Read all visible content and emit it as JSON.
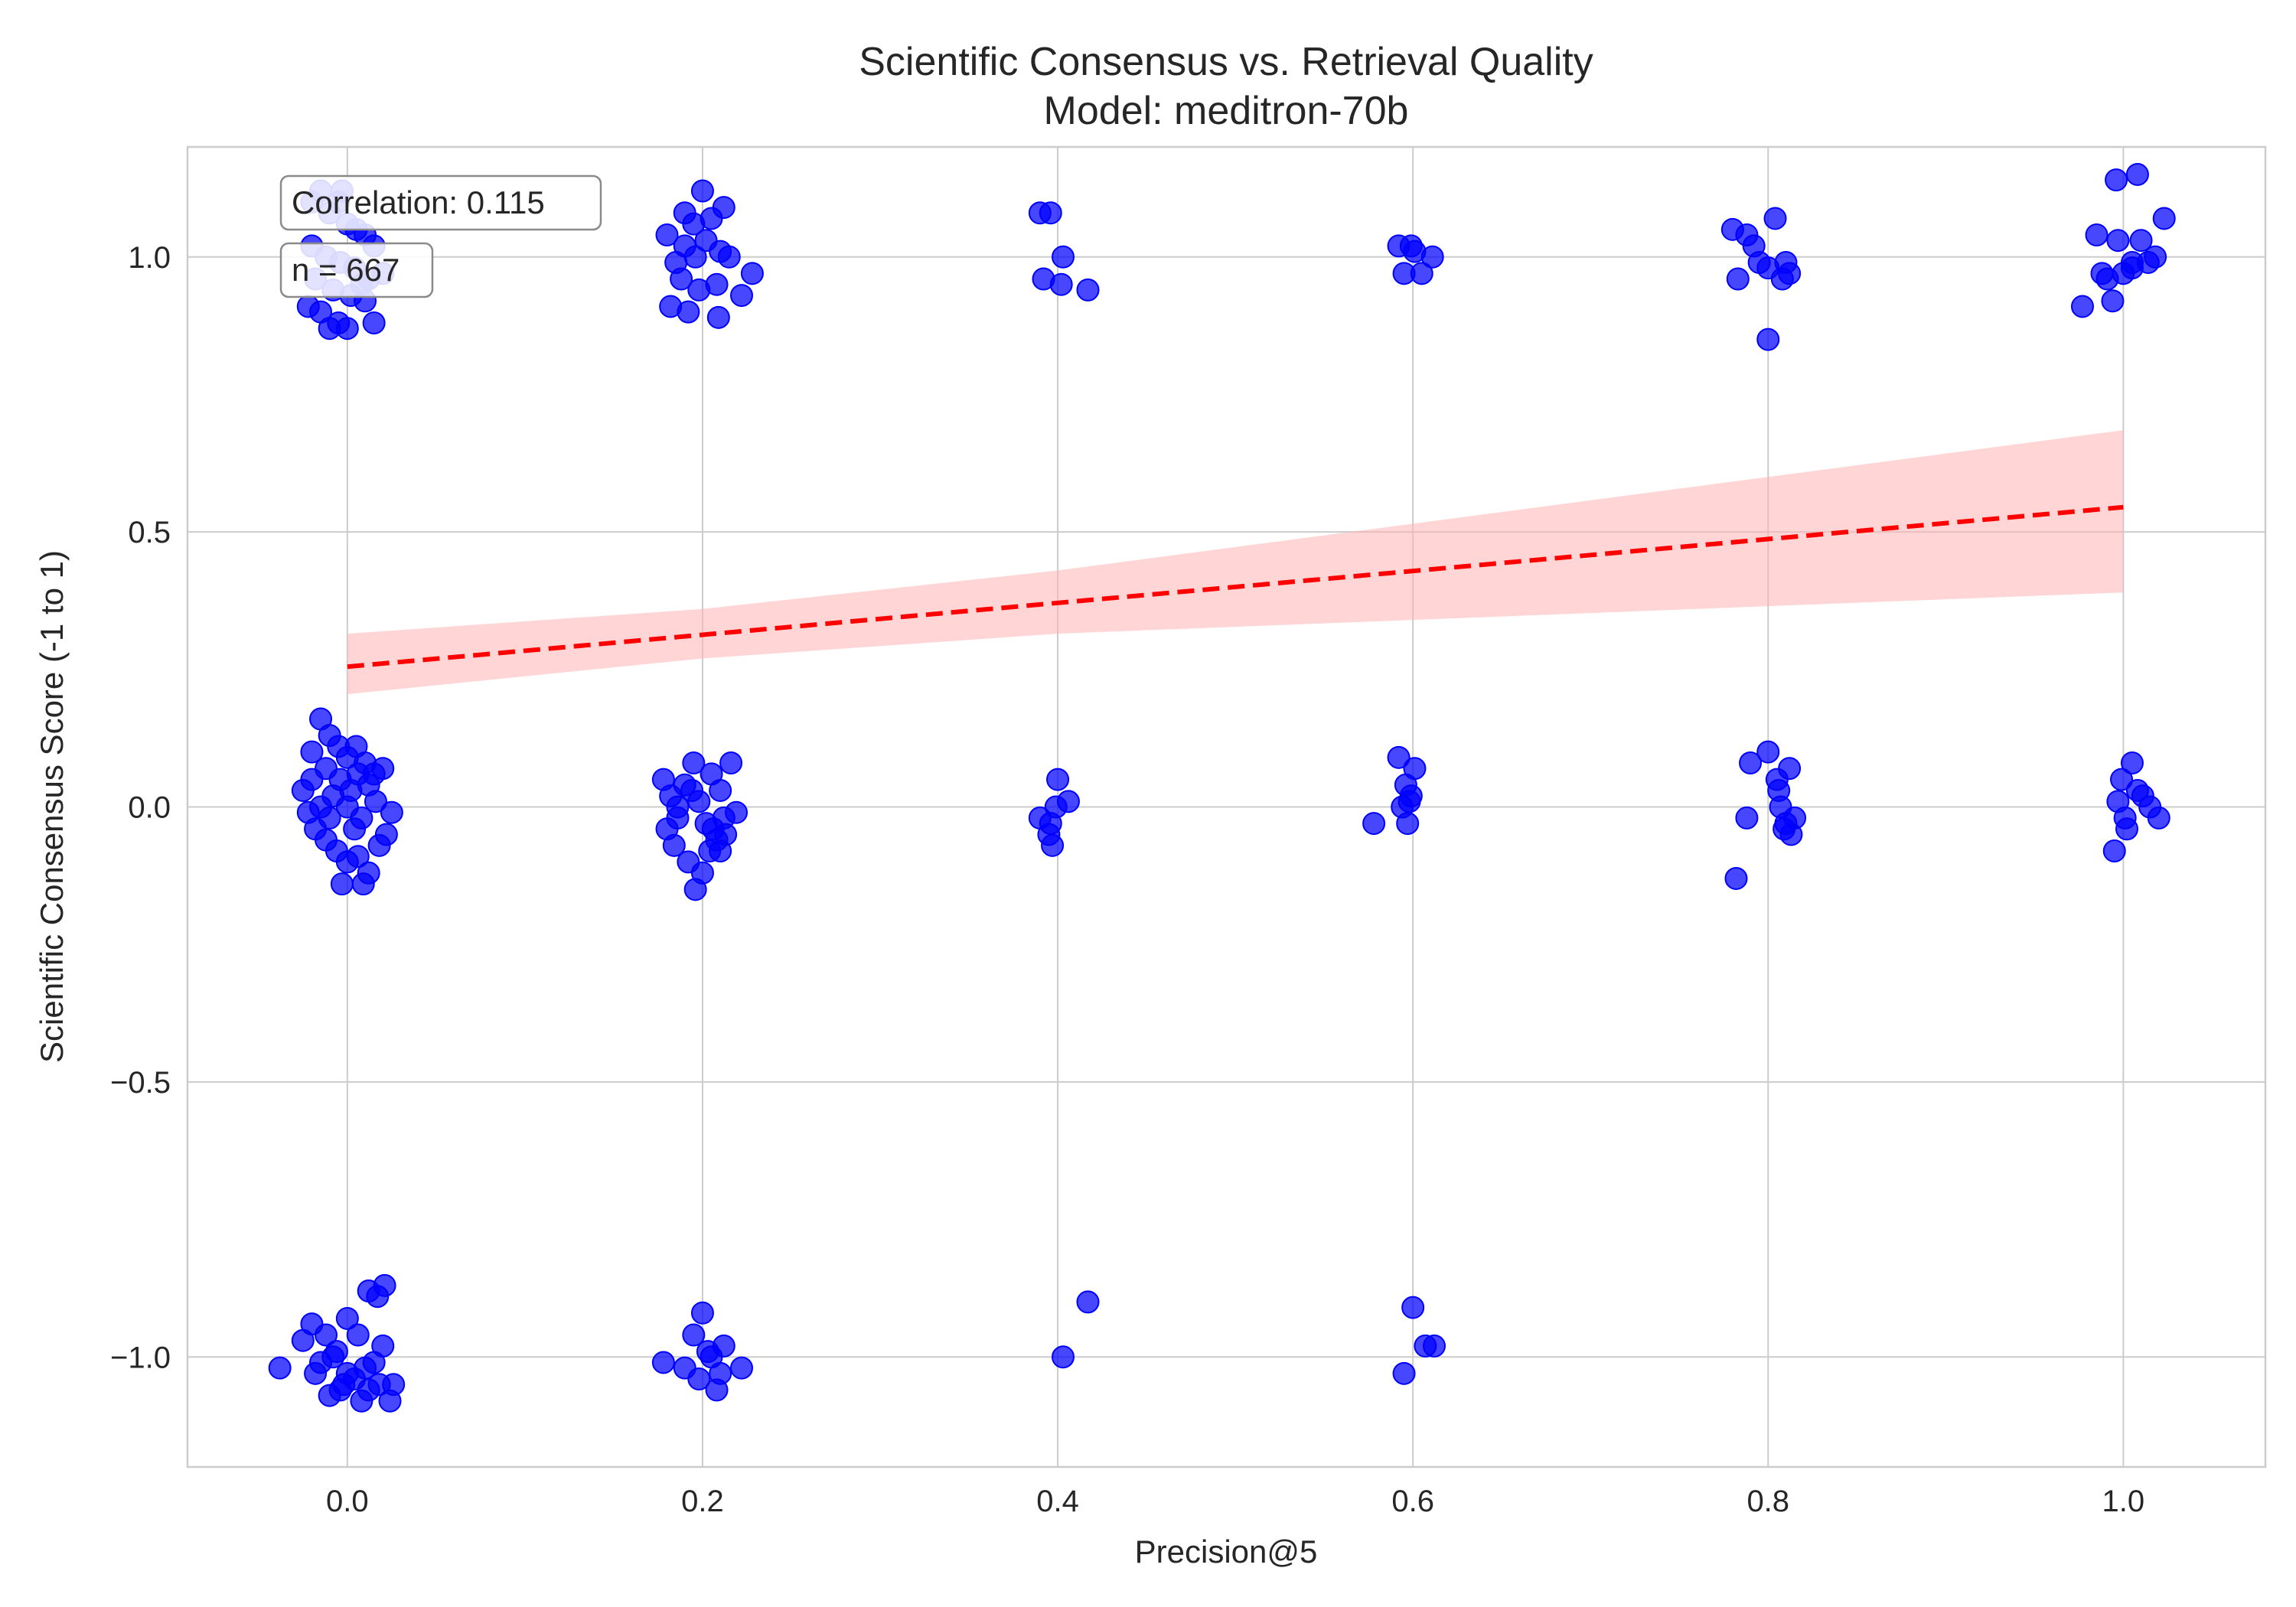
{
  "chart_data": {
    "type": "scatter",
    "title": "Scientific Consensus vs. Retrieval Quality",
    "subtitle": "Model: meditron-70b",
    "xlabel": "Precision@5",
    "ylabel": "Scientific Consensus Score (-1 to 1)",
    "xlim": [
      -0.09,
      1.08
    ],
    "ylim": [
      -1.2,
      1.2
    ],
    "x_ticks": [
      0.0,
      0.2,
      0.4,
      0.6,
      0.8,
      1.0
    ],
    "x_tick_labels": [
      "0.0",
      "0.2",
      "0.4",
      "0.6",
      "0.8",
      "1.0"
    ],
    "y_ticks": [
      -1.0,
      -0.5,
      0.0,
      0.5,
      1.0
    ],
    "y_tick_labels": [
      "−1.0",
      "−0.5",
      "0.0",
      "0.5",
      "1.0"
    ],
    "grid": true,
    "annotations": [
      "Correlation: 0.115",
      "n = 667"
    ],
    "point_color": "#0000ff",
    "trend_color": "#ff0000",
    "band_color": "#ffb3b3",
    "trend_line": {
      "x": [
        0.0,
        1.0
      ],
      "y": [
        0.255,
        0.545
      ],
      "style": "dashed"
    },
    "confidence_band": {
      "x": [
        0.0,
        0.2,
        0.4,
        0.6,
        0.8,
        1.0
      ],
      "lower": [
        0.205,
        0.27,
        0.315,
        0.34,
        0.365,
        0.39
      ],
      "upper": [
        0.315,
        0.36,
        0.43,
        0.515,
        0.6,
        0.685
      ]
    },
    "points": [
      [
        -0.02,
        1.1
      ],
      [
        -0.015,
        1.12
      ],
      [
        -0.01,
        1.08
      ],
      [
        -0.005,
        1.1
      ],
      [
        0.0,
        1.06
      ],
      [
        0.005,
        1.05
      ],
      [
        0.01,
        1.04
      ],
      [
        0.015,
        1.02
      ],
      [
        -0.02,
        1.02
      ],
      [
        -0.012,
        1.0
      ],
      [
        -0.004,
        0.99
      ],
      [
        0.004,
        0.98
      ],
      [
        0.012,
        0.96
      ],
      [
        0.02,
        0.97
      ],
      [
        -0.018,
        0.96
      ],
      [
        -0.008,
        0.94
      ],
      [
        0.002,
        0.93
      ],
      [
        0.01,
        0.92
      ],
      [
        -0.022,
        0.91
      ],
      [
        -0.015,
        0.9
      ],
      [
        -0.005,
        0.88
      ],
      [
        -0.01,
        0.87
      ],
      [
        0.0,
        0.87
      ],
      [
        0.015,
        0.88
      ],
      [
        0.008,
        0.95
      ],
      [
        -0.003,
        1.12
      ],
      [
        0.18,
        1.04
      ],
      [
        0.185,
        0.99
      ],
      [
        0.19,
        1.08
      ],
      [
        0.195,
        1.06
      ],
      [
        0.2,
        1.12
      ],
      [
        0.205,
        1.07
      ],
      [
        0.21,
        1.01
      ],
      [
        0.212,
        1.09
      ],
      [
        0.188,
        0.96
      ],
      [
        0.198,
        0.94
      ],
      [
        0.208,
        0.95
      ],
      [
        0.215,
        1.0
      ],
      [
        0.222,
        0.93
      ],
      [
        0.228,
        0.97
      ],
      [
        0.182,
        0.91
      ],
      [
        0.192,
        0.9
      ],
      [
        0.209,
        0.89
      ],
      [
        0.202,
        1.03
      ],
      [
        0.196,
        1.0
      ],
      [
        0.19,
        1.02
      ],
      [
        0.39,
        1.08
      ],
      [
        0.396,
        1.08
      ],
      [
        0.392,
        0.96
      ],
      [
        0.402,
        0.95
      ],
      [
        0.403,
        1.0
      ],
      [
        0.417,
        0.94
      ],
      [
        0.592,
        1.02
      ],
      [
        0.595,
        0.97
      ],
      [
        0.599,
        1.02
      ],
      [
        0.605,
        0.97
      ],
      [
        0.601,
        1.01
      ],
      [
        0.611,
        1.0
      ],
      [
        0.78,
        1.05
      ],
      [
        0.788,
        1.04
      ],
      [
        0.783,
        0.96
      ],
      [
        0.792,
        1.02
      ],
      [
        0.795,
        0.99
      ],
      [
        0.8,
        0.98
      ],
      [
        0.804,
        1.07
      ],
      [
        0.808,
        0.96
      ],
      [
        0.812,
        0.97
      ],
      [
        0.81,
        0.99
      ],
      [
        0.8,
        0.85
      ],
      [
        0.977,
        0.91
      ],
      [
        0.985,
        1.04
      ],
      [
        0.988,
        0.97
      ],
      [
        0.991,
        0.96
      ],
      [
        0.994,
        0.92
      ],
      [
        0.997,
        1.03
      ],
      [
        1.0,
        0.97
      ],
      [
        1.005,
        0.98
      ],
      [
        1.008,
        1.15
      ],
      [
        0.996,
        1.14
      ],
      [
        1.01,
        1.03
      ],
      [
        1.014,
        0.99
      ],
      [
        1.018,
        1.0
      ],
      [
        1.023,
        1.07
      ],
      [
        1.005,
        0.99
      ],
      [
        -0.025,
        0.03
      ],
      [
        -0.02,
        0.1
      ],
      [
        -0.015,
        0.16
      ],
      [
        -0.01,
        0.13
      ],
      [
        -0.005,
        0.11
      ],
      [
        0.0,
        0.09
      ],
      [
        0.005,
        0.11
      ],
      [
        0.01,
        0.08
      ],
      [
        0.015,
        0.06
      ],
      [
        0.02,
        0.07
      ],
      [
        -0.022,
        -0.01
      ],
      [
        -0.018,
        -0.04
      ],
      [
        -0.012,
        -0.06
      ],
      [
        -0.006,
        -0.08
      ],
      [
        0.0,
        -0.1
      ],
      [
        0.006,
        -0.09
      ],
      [
        0.012,
        -0.12
      ],
      [
        0.018,
        -0.07
      ],
      [
        0.022,
        -0.05
      ],
      [
        0.025,
        -0.01
      ],
      [
        -0.003,
        -0.14
      ],
      [
        0.009,
        -0.14
      ],
      [
        -0.015,
        0.0
      ],
      [
        -0.008,
        0.02
      ],
      [
        0.0,
        0.0
      ],
      [
        0.008,
        -0.02
      ],
      [
        0.016,
        0.01
      ],
      [
        -0.004,
        0.05
      ],
      [
        0.004,
        -0.04
      ],
      [
        -0.02,
        0.05
      ],
      [
        -0.012,
        0.07
      ],
      [
        0.002,
        0.03
      ],
      [
        0.012,
        0.04
      ],
      [
        -0.01,
        -0.02
      ],
      [
        0.006,
        0.06
      ],
      [
        0.178,
        0.05
      ],
      [
        0.182,
        0.02
      ],
      [
        0.186,
        -0.02
      ],
      [
        0.19,
        0.04
      ],
      [
        0.195,
        0.08
      ],
      [
        0.198,
        0.01
      ],
      [
        0.202,
        -0.03
      ],
      [
        0.205,
        0.06
      ],
      [
        0.21,
        0.03
      ],
      [
        0.213,
        -0.05
      ],
      [
        0.216,
        0.08
      ],
      [
        0.219,
        -0.01
      ],
      [
        0.184,
        -0.07
      ],
      [
        0.192,
        -0.1
      ],
      [
        0.196,
        -0.15
      ],
      [
        0.2,
        -0.12
      ],
      [
        0.204,
        -0.08
      ],
      [
        0.208,
        -0.06
      ],
      [
        0.212,
        -0.02
      ],
      [
        0.186,
        0.0
      ],
      [
        0.194,
        0.03
      ],
      [
        0.206,
        -0.04
      ],
      [
        0.18,
        -0.04
      ],
      [
        0.21,
        -0.08
      ],
      [
        0.39,
        -0.02
      ],
      [
        0.395,
        -0.05
      ],
      [
        0.397,
        -0.07
      ],
      [
        0.399,
        0.0
      ],
      [
        0.4,
        0.05
      ],
      [
        0.406,
        0.01
      ],
      [
        0.396,
        -0.03
      ],
      [
        0.578,
        -0.03
      ],
      [
        0.592,
        0.09
      ],
      [
        0.596,
        0.04
      ],
      [
        0.598,
        0.01
      ],
      [
        0.601,
        0.07
      ],
      [
        0.599,
        0.02
      ],
      [
        0.594,
        0.0
      ],
      [
        0.597,
        -0.03
      ],
      [
        0.782,
        -0.13
      ],
      [
        0.788,
        -0.02
      ],
      [
        0.79,
        0.08
      ],
      [
        0.8,
        0.1
      ],
      [
        0.805,
        0.05
      ],
      [
        0.806,
        0.03
      ],
      [
        0.809,
        -0.04
      ],
      [
        0.812,
        0.07
      ],
      [
        0.815,
        -0.02
      ],
      [
        0.813,
        -0.05
      ],
      [
        0.807,
        0.0
      ],
      [
        0.81,
        -0.03
      ],
      [
        0.995,
        -0.08
      ],
      [
        0.997,
        0.01
      ],
      [
        0.999,
        0.05
      ],
      [
        1.002,
        -0.04
      ],
      [
        1.005,
        0.08
      ],
      [
        1.008,
        0.03
      ],
      [
        1.011,
        0.02
      ],
      [
        1.015,
        0.0
      ],
      [
        1.02,
        -0.02
      ],
      [
        1.001,
        -0.02
      ],
      [
        -0.038,
        -1.02
      ],
      [
        -0.025,
        -0.97
      ],
      [
        -0.018,
        -1.03
      ],
      [
        -0.012,
        -0.96
      ],
      [
        -0.006,
        -0.99
      ],
      [
        0.0,
        -0.93
      ],
      [
        0.006,
        -0.96
      ],
      [
        0.012,
        -0.88
      ],
      [
        0.017,
        -0.89
      ],
      [
        0.021,
        -0.87
      ],
      [
        0.02,
        -0.98
      ],
      [
        0.024,
        -1.08
      ],
      [
        0.026,
        -1.05
      ],
      [
        -0.01,
        -1.07
      ],
      [
        -0.004,
        -1.06
      ],
      [
        0.004,
        -1.04
      ],
      [
        0.01,
        -1.02
      ],
      [
        0.015,
        -1.01
      ],
      [
        0.018,
        -1.05
      ],
      [
        -0.015,
        -1.01
      ],
      [
        0.008,
        -1.08
      ],
      [
        -0.008,
        -1.0
      ],
      [
        0.0,
        -1.03
      ],
      [
        -0.002,
        -1.05
      ],
      [
        -0.02,
        -0.94
      ],
      [
        0.012,
        -1.06
      ],
      [
        0.178,
        -1.01
      ],
      [
        0.19,
        -1.02
      ],
      [
        0.195,
        -0.96
      ],
      [
        0.2,
        -0.92
      ],
      [
        0.205,
        -1.0
      ],
      [
        0.208,
        -1.06
      ],
      [
        0.212,
        -0.98
      ],
      [
        0.222,
        -1.02
      ],
      [
        0.198,
        -1.04
      ],
      [
        0.203,
        -0.99
      ],
      [
        0.21,
        -1.03
      ],
      [
        0.403,
        -1.0
      ],
      [
        0.417,
        -0.9
      ],
      [
        0.595,
        -1.03
      ],
      [
        0.6,
        -0.91
      ],
      [
        0.607,
        -0.98
      ],
      [
        0.612,
        -0.98
      ]
    ]
  }
}
